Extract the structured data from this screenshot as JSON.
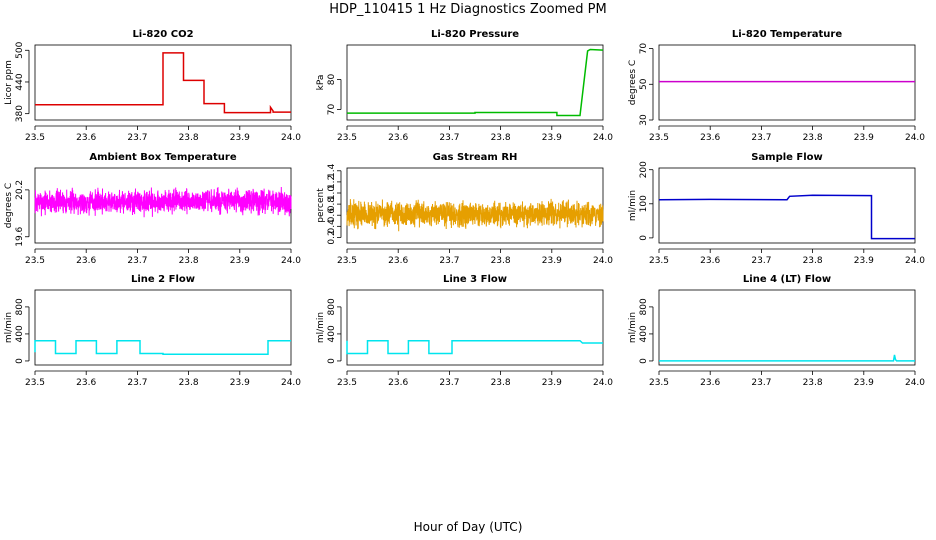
{
  "title": "HDP_110415  1 Hz Diagnostics Zoomed PM",
  "xlabel": "Hour of Day (UTC)",
  "chart_data": [
    {
      "type": "line",
      "title": "Li-820 CO2",
      "ylabel": "Licor ppm",
      "color": "#dd0000",
      "xlim": [
        23.5,
        24.0
      ],
      "ylim": [
        368,
        510
      ],
      "x_ticks": [
        23.5,
        23.6,
        23.7,
        23.8,
        23.9,
        24.0
      ],
      "x_tick_labels": [
        "23.5",
        "23.6",
        "23.7",
        "23.8",
        "23.9",
        "24.0"
      ],
      "y_ticks": [
        380,
        440,
        500
      ],
      "y_tick_labels": [
        "380",
        "440",
        "500"
      ],
      "series": [
        {
          "x": [
            23.5,
            23.75,
            23.75,
            23.79,
            23.79,
            23.83,
            23.83,
            23.87,
            23.87,
            23.96,
            23.96,
            23.965,
            23.965,
            24.0
          ],
          "y": [
            397,
            397,
            495,
            495,
            443,
            443,
            399,
            399,
            382,
            382,
            392,
            385,
            383,
            383
          ]
        }
      ]
    },
    {
      "type": "line",
      "title": "Li-820 Pressure",
      "ylabel": "kPa",
      "color": "#00bb00",
      "xlim": [
        23.5,
        24.0
      ],
      "ylim": [
        66.5,
        91.5
      ],
      "x_ticks": [
        23.5,
        23.6,
        23.7,
        23.8,
        23.9,
        24.0
      ],
      "x_tick_labels": [
        "23.5",
        "23.6",
        "23.7",
        "23.8",
        "23.9",
        "24.0"
      ],
      "y_ticks": [
        70,
        80
      ],
      "y_tick_labels": [
        "70",
        "80"
      ],
      "series": [
        {
          "x": [
            23.5,
            23.75,
            23.75,
            23.91,
            23.91,
            23.955,
            23.97,
            23.975,
            24.0
          ],
          "y": [
            68.8,
            68.8,
            69.0,
            69.0,
            68.0,
            68.0,
            89.5,
            90.0,
            89.8
          ]
        }
      ]
    },
    {
      "type": "line",
      "title": "Li-820 Temperature",
      "ylabel": "degrees C",
      "color": "#cc00cc",
      "xlim": [
        23.5,
        24.0
      ],
      "ylim": [
        30,
        72
      ],
      "x_ticks": [
        23.5,
        23.6,
        23.7,
        23.8,
        23.9,
        24.0
      ],
      "x_tick_labels": [
        "23.5",
        "23.6",
        "23.7",
        "23.8",
        "23.9",
        "24.0"
      ],
      "y_ticks": [
        30,
        50,
        70
      ],
      "y_tick_labels": [
        "30",
        "50",
        "70"
      ],
      "series": [
        {
          "x": [
            23.5,
            24.0
          ],
          "y": [
            51.5,
            51.5
          ]
        }
      ]
    },
    {
      "type": "line",
      "title": "Ambient Box Temperature",
      "ylabel": "degrees C",
      "color": "#ff00ff",
      "xlim": [
        23.5,
        24.0
      ],
      "ylim": [
        19.52,
        20.48
      ],
      "x_ticks": [
        23.5,
        23.6,
        23.7,
        23.8,
        23.9,
        24.0
      ],
      "x_tick_labels": [
        "23.5",
        "23.6",
        "23.7",
        "23.8",
        "23.9",
        "24.0"
      ],
      "y_ticks": [
        19.6,
        20.2
      ],
      "y_tick_labels": [
        "19.6",
        "20.2"
      ],
      "noise": {
        "center": 20.05,
        "amplitude": 0.22,
        "samples": 1800,
        "seed": 7
      }
    },
    {
      "type": "line",
      "title": "Gas Stream RH",
      "ylabel": "percent",
      "color": "#e69f00",
      "xlim": [
        23.5,
        24.0
      ],
      "ylim": [
        0.1,
        1.45
      ],
      "x_ticks": [
        23.5,
        23.6,
        23.7,
        23.8,
        23.9,
        24.0
      ],
      "x_tick_labels": [
        "23.5",
        "23.6",
        "23.7",
        "23.8",
        "23.9",
        "24.0"
      ],
      "y_ticks": [
        0.2,
        0.4,
        0.6,
        0.8,
        1.0,
        1.2,
        1.4
      ],
      "y_tick_labels": [
        "0.2",
        "0.4",
        "0.6",
        "0.8",
        "1.0",
        "1.2",
        "1.4"
      ],
      "noise": {
        "center": 0.62,
        "amplitude": 0.32,
        "samples": 1800,
        "seed": 13
      }
    },
    {
      "type": "line",
      "title": "Sample Flow",
      "ylabel": "ml/min",
      "color": "#0000cc",
      "xlim": [
        23.5,
        24.0
      ],
      "ylim": [
        -15,
        205
      ],
      "x_ticks": [
        23.5,
        23.6,
        23.7,
        23.8,
        23.9,
        24.0
      ],
      "x_tick_labels": [
        "23.5",
        "23.6",
        "23.7",
        "23.8",
        "23.9",
        "24.0"
      ],
      "y_ticks": [
        0,
        100,
        200
      ],
      "y_tick_labels": [
        "0",
        "100",
        "200"
      ],
      "series": [
        {
          "x": [
            23.5,
            23.6,
            23.75,
            23.755,
            23.8,
            23.915,
            23.915,
            23.925,
            24.0
          ],
          "y": [
            112,
            113,
            112,
            122,
            125,
            124,
            -2,
            -2,
            -2
          ]
        }
      ]
    },
    {
      "type": "line",
      "title": "Line 2 Flow",
      "ylabel": "ml/min",
      "color": "#00e5ee",
      "xlim": [
        23.5,
        24.0
      ],
      "ylim": [
        -60,
        1050
      ],
      "x_ticks": [
        23.5,
        23.6,
        23.7,
        23.8,
        23.9,
        24.0
      ],
      "x_tick_labels": [
        "23.5",
        "23.6",
        "23.7",
        "23.8",
        "23.9",
        "24.0"
      ],
      "y_ticks": [
        0,
        400,
        800
      ],
      "y_tick_labels": [
        "0",
        "400",
        "800"
      ],
      "series": [
        {
          "x": [
            23.5,
            23.5,
            23.54,
            23.54,
            23.58,
            23.58,
            23.62,
            23.62,
            23.66,
            23.66,
            23.705,
            23.705,
            23.75,
            23.75,
            23.955,
            23.955,
            24.0
          ],
          "y": [
            130,
            300,
            300,
            110,
            110,
            300,
            300,
            110,
            110,
            300,
            300,
            110,
            110,
            100,
            100,
            300,
            300
          ]
        }
      ]
    },
    {
      "type": "line",
      "title": "Line 3 Flow",
      "ylabel": "ml/min",
      "color": "#00e5ee",
      "xlim": [
        23.5,
        24.0
      ],
      "ylim": [
        -60,
        1050
      ],
      "x_ticks": [
        23.5,
        23.6,
        23.7,
        23.8,
        23.9,
        24.0
      ],
      "x_tick_labels": [
        "23.5",
        "23.6",
        "23.7",
        "23.8",
        "23.9",
        "24.0"
      ],
      "y_ticks": [
        0,
        400,
        800
      ],
      "y_tick_labels": [
        "0",
        "400",
        "800"
      ],
      "series": [
        {
          "x": [
            23.5,
            23.5,
            23.54,
            23.54,
            23.58,
            23.58,
            23.62,
            23.62,
            23.66,
            23.66,
            23.705,
            23.705,
            23.955,
            23.96,
            24.0
          ],
          "y": [
            300,
            110,
            110,
            300,
            300,
            110,
            110,
            300,
            300,
            110,
            110,
            300,
            300,
            265,
            265
          ]
        }
      ]
    },
    {
      "type": "line",
      "title": "Line 4 (LT) Flow",
      "ylabel": "ml/min",
      "color": "#00e5ee",
      "xlim": [
        23.5,
        24.0
      ],
      "ylim": [
        -60,
        1050
      ],
      "x_ticks": [
        23.5,
        23.6,
        23.7,
        23.8,
        23.9,
        24.0
      ],
      "x_tick_labels": [
        "23.5",
        "23.6",
        "23.7",
        "23.8",
        "23.9",
        "24.0"
      ],
      "y_ticks": [
        0,
        400,
        800
      ],
      "y_tick_labels": [
        "0",
        "400",
        "800"
      ],
      "series": [
        {
          "x": [
            23.5,
            23.958,
            23.96,
            23.962,
            23.964,
            24.0
          ],
          "y": [
            0,
            0,
            90,
            20,
            0,
            0
          ]
        }
      ]
    }
  ]
}
